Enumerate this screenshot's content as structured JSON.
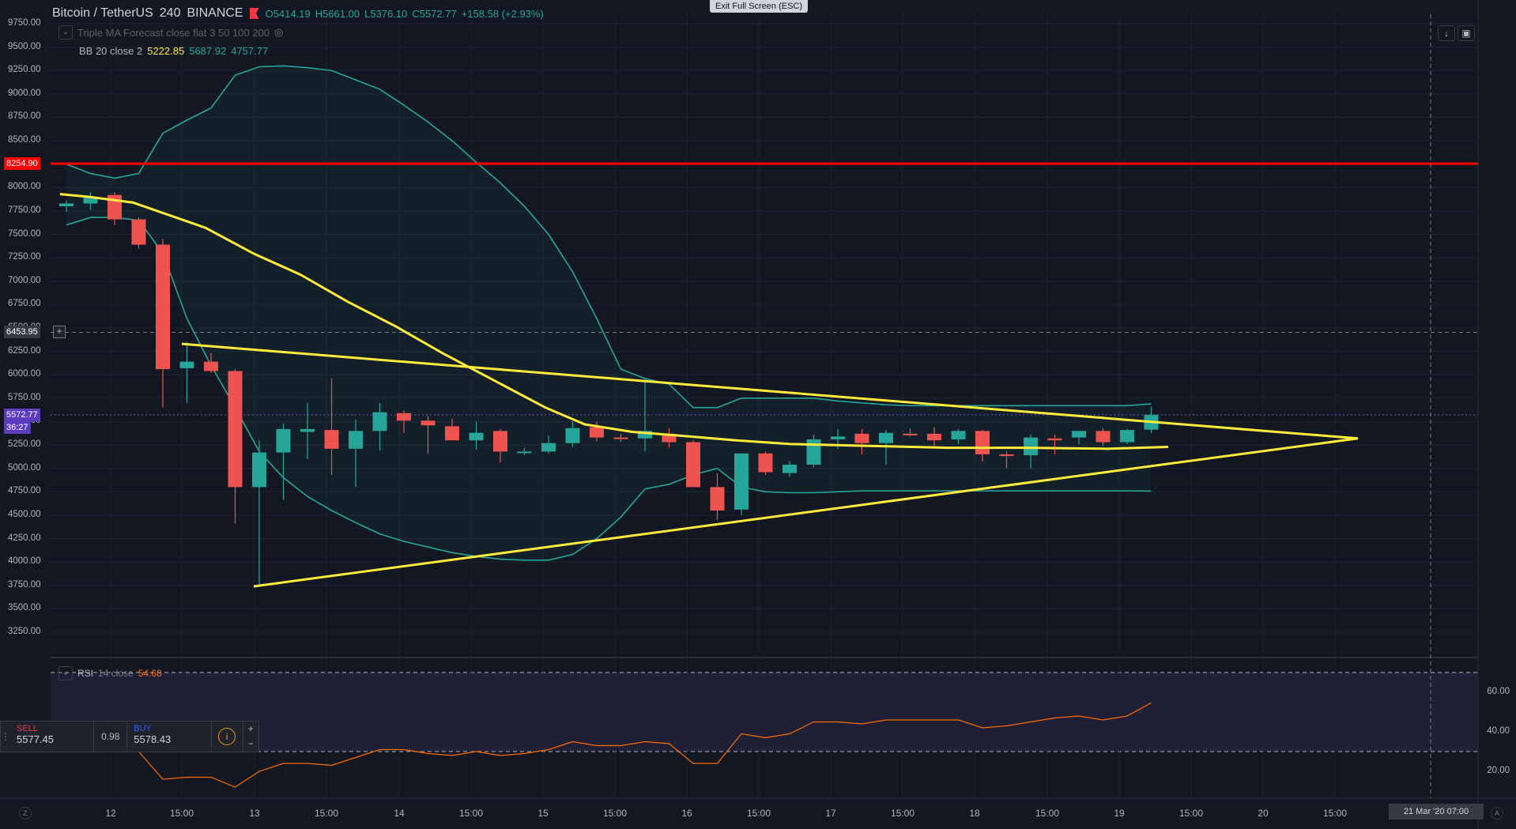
{
  "header": {
    "symbol": "Bitcoin / TetherUS",
    "interval": "240",
    "exchange": "BINANCE",
    "ohlc": {
      "open": "O5414.19",
      "high": "H5661.00",
      "low": "L5376.10",
      "close": "C5572.77",
      "change": "+158.58 (+2.93%)"
    }
  },
  "exit_fullscreen": "Exit Full Screen (ESC)",
  "indicators": {
    "triple_ma": "Triple MA Forecast close flat 3 50 100 200",
    "bb_label": "BB 20 close 2",
    "bb_mid": "5222.85",
    "bb_upper": "5687.92",
    "bb_lower": "4757.77"
  },
  "price_axis": [
    "9750.00",
    "9500.00",
    "9250.00",
    "9000.00",
    "8750.00",
    "8500.00",
    "8250.00",
    "8000.00",
    "7750.00",
    "7500.00",
    "7250.00",
    "7000.00",
    "6750.00",
    "6500.00",
    "6250.00",
    "6000.00",
    "5750.00",
    "5500.00",
    "5250.00",
    "5000.00",
    "4750.00",
    "4500.00",
    "4250.00",
    "4000.00",
    "3750.00",
    "3500.00",
    "3250.00"
  ],
  "tags": {
    "resistance": "8254.90",
    "crosshair": "6453.95",
    "last_price": "5572.77",
    "countdown": "36:27"
  },
  "time_axis": [
    "12",
    "15:00",
    "13",
    "15:00",
    "14",
    "15:00",
    "15",
    "15:00",
    "16",
    "15:00",
    "17",
    "15:00",
    "18",
    "15:00",
    "19",
    "15:00",
    "20",
    "15:00"
  ],
  "date_label": "21 Mar '20   07:00",
  "rsi": {
    "label": "RSI",
    "params": "14 close",
    "value": "54.68",
    "axis": [
      "60.00",
      "40.00",
      "20.00"
    ]
  },
  "trade": {
    "sell_label": "SELL",
    "sell_price": "5577.45",
    "spread": "0.98",
    "buy_label": "BUY",
    "buy_price": "5578.43",
    "info": "i",
    "plus": "+",
    "minus": "−"
  },
  "colors": {
    "up": "#26a69a",
    "down": "#ef5350",
    "trend": "#ffeb3b",
    "resistance": "#ff0000",
    "rsi": "#ff6d00"
  },
  "chart_data": {
    "type": "candlestick",
    "candles": [
      {
        "o": 7800,
        "h": 7860,
        "l": 7740,
        "c": 7830
      },
      {
        "o": 7830,
        "h": 7950,
        "l": 7760,
        "c": 7900
      },
      {
        "o": 7920,
        "h": 7950,
        "l": 7600,
        "c": 7660
      },
      {
        "o": 7660,
        "h": 7680,
        "l": 7350,
        "c": 7390
      },
      {
        "o": 7390,
        "h": 7450,
        "l": 5650,
        "c": 6060
      },
      {
        "o": 6070,
        "h": 6350,
        "l": 5700,
        "c": 6140
      },
      {
        "o": 6140,
        "h": 6230,
        "l": 6020,
        "c": 6040
      },
      {
        "o": 6040,
        "h": 6060,
        "l": 4410,
        "c": 4800
      },
      {
        "o": 4800,
        "h": 5300,
        "l": 3750,
        "c": 5170
      },
      {
        "o": 5170,
        "h": 5480,
        "l": 4660,
        "c": 5420
      },
      {
        "o": 5390,
        "h": 5700,
        "l": 5100,
        "c": 5420
      },
      {
        "o": 5410,
        "h": 5960,
        "l": 4930,
        "c": 5210
      },
      {
        "o": 5210,
        "h": 5520,
        "l": 4800,
        "c": 5400
      },
      {
        "o": 5400,
        "h": 5700,
        "l": 5190,
        "c": 5600
      },
      {
        "o": 5590,
        "h": 5620,
        "l": 5380,
        "c": 5510
      },
      {
        "o": 5510,
        "h": 5560,
        "l": 5160,
        "c": 5460
      },
      {
        "o": 5450,
        "h": 5530,
        "l": 5300,
        "c": 5300
      },
      {
        "o": 5300,
        "h": 5500,
        "l": 5200,
        "c": 5380
      },
      {
        "o": 5400,
        "h": 5420,
        "l": 5060,
        "c": 5180
      },
      {
        "o": 5180,
        "h": 5220,
        "l": 5140,
        "c": 5180
      },
      {
        "o": 5180,
        "h": 5350,
        "l": 5160,
        "c": 5270
      },
      {
        "o": 5270,
        "h": 5500,
        "l": 5230,
        "c": 5430
      },
      {
        "o": 5440,
        "h": 5500,
        "l": 5290,
        "c": 5330
      },
      {
        "o": 5330,
        "h": 5370,
        "l": 5280,
        "c": 5320
      },
      {
        "o": 5320,
        "h": 5960,
        "l": 5180,
        "c": 5400
      },
      {
        "o": 5370,
        "h": 5430,
        "l": 5220,
        "c": 5280
      },
      {
        "o": 5280,
        "h": 5300,
        "l": 4800,
        "c": 4800
      },
      {
        "o": 4800,
        "h": 4950,
        "l": 4450,
        "c": 4550
      },
      {
        "o": 4560,
        "h": 5160,
        "l": 4500,
        "c": 5160
      },
      {
        "o": 5160,
        "h": 5180,
        "l": 4930,
        "c": 4960
      },
      {
        "o": 4950,
        "h": 5080,
        "l": 4910,
        "c": 5040
      },
      {
        "o": 5040,
        "h": 5360,
        "l": 5010,
        "c": 5310
      },
      {
        "o": 5310,
        "h": 5420,
        "l": 5210,
        "c": 5340
      },
      {
        "o": 5370,
        "h": 5420,
        "l": 5150,
        "c": 5270
      },
      {
        "o": 5270,
        "h": 5410,
        "l": 5040,
        "c": 5380
      },
      {
        "o": 5370,
        "h": 5430,
        "l": 5340,
        "c": 5360
      },
      {
        "o": 5370,
        "h": 5440,
        "l": 5230,
        "c": 5300
      },
      {
        "o": 5310,
        "h": 5420,
        "l": 5260,
        "c": 5400
      },
      {
        "o": 5400,
        "h": 5410,
        "l": 5070,
        "c": 5150
      },
      {
        "o": 5150,
        "h": 5180,
        "l": 5000,
        "c": 5140
      },
      {
        "o": 5140,
        "h": 5360,
        "l": 5000,
        "c": 5330
      },
      {
        "o": 5320,
        "h": 5360,
        "l": 5150,
        "c": 5300
      },
      {
        "o": 5330,
        "h": 5400,
        "l": 5260,
        "c": 5400
      },
      {
        "o": 5400,
        "h": 5430,
        "l": 5240,
        "c": 5280
      },
      {
        "o": 5280,
        "h": 5420,
        "l": 5260,
        "c": 5410
      },
      {
        "o": 5414,
        "h": 5661,
        "l": 5376,
        "c": 5572
      }
    ],
    "bb_upper": [
      8250,
      8150,
      8100,
      8150,
      8580,
      8720,
      8850,
      9200,
      9290,
      9300,
      9280,
      9250,
      9150,
      9050,
      8880,
      8700,
      8500,
      8270,
      8050,
      7800,
      7500,
      7100,
      6600,
      6060,
      5960,
      5900,
      5650,
      5650,
      5750,
      5750,
      5750,
      5750,
      5720,
      5700,
      5680,
      5670,
      5670,
      5670,
      5670,
      5670,
      5670,
      5670,
      5670,
      5670,
      5670,
      5690
    ],
    "bb_lower": [
      7600,
      7680,
      7680,
      7650,
      7300,
      6600,
      6100,
      5650,
      5180,
      4900,
      4700,
      4550,
      4420,
      4300,
      4220,
      4160,
      4100,
      4060,
      4030,
      4020,
      4020,
      4080,
      4250,
      4480,
      4780,
      4830,
      4930,
      5000,
      4800,
      4750,
      4740,
      4740,
      4750,
      4760,
      4760,
      4760,
      4760,
      4760,
      4760,
      4760,
      4760,
      4760,
      4760,
      4760,
      4760,
      4757
    ],
    "rsi": [
      44,
      42,
      40,
      30,
      16,
      17,
      17,
      12,
      20,
      24,
      24,
      23,
      27,
      31,
      31,
      29,
      28,
      30,
      28,
      29,
      31,
      35,
      33,
      33,
      35,
      34,
      24,
      24,
      39,
      37,
      39,
      45,
      45,
      44,
      46,
      46,
      46,
      46,
      42,
      43,
      45,
      47,
      48,
      46,
      48,
      54.68
    ],
    "resistance": 8254.9,
    "last": 5572.77,
    "crosshair": 6453.95,
    "ylim": [
      3250,
      9750
    ]
  }
}
